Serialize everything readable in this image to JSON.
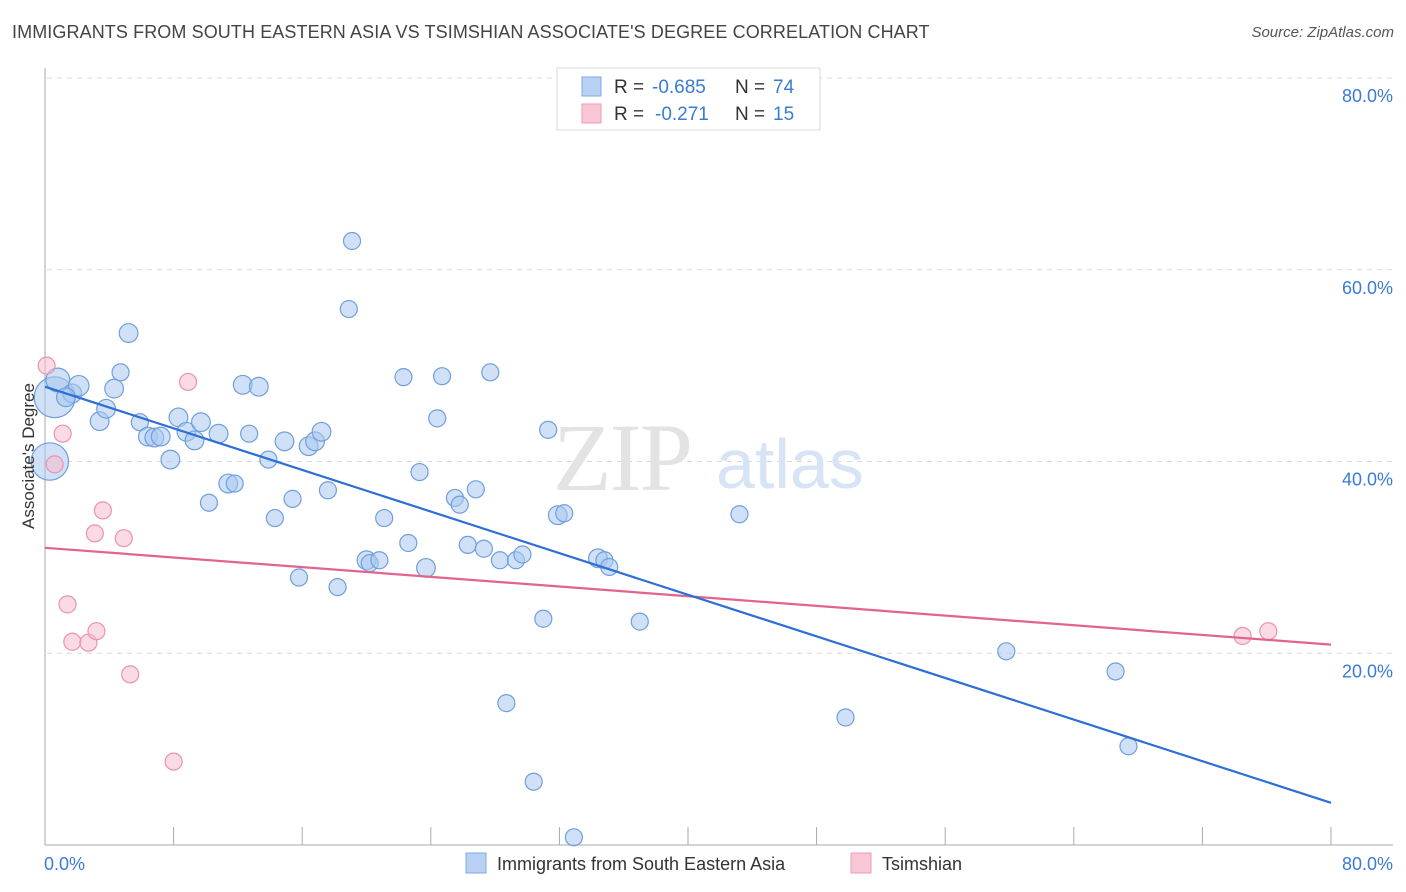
{
  "header": {
    "title": "IMMIGRANTS FROM SOUTH EASTERN ASIA VS TSIMSHIAN ASSOCIATE'S DEGREE CORRELATION CHART",
    "source": "Source: ZipAtlas.com"
  },
  "watermark": {
    "part1": "ZIP",
    "part2": "atlas"
  },
  "stats": {
    "r_label": "R =",
    "n_label": "N =",
    "rows": [
      {
        "r": "-0.685",
        "n": "74",
        "fill": "#b8d1f3",
        "stroke": "#7ea9e0"
      },
      {
        "r": "-0.271",
        "n": "15",
        "fill": "#f9c6d5",
        "stroke": "#ee9ab4"
      }
    ]
  },
  "colors": {
    "blue_point_fill": "#a9c8f0",
    "blue_point_stroke": "#6f9fde",
    "blue_line": "#2d6fd4",
    "pink_point_fill": "#f6bccd",
    "pink_point_stroke": "#eb93ae",
    "pink_line": "#e0648f",
    "tick_text": "#3a7bd5",
    "grid": "#d9d9d9"
  },
  "chart_data": {
    "type": "scatter",
    "title": "IMMIGRANTS FROM SOUTH EASTERN ASIA VS TSIMSHIAN ASSOCIATE'S DEGREE CORRELATION CHART",
    "xlabel": "",
    "ylabel": "Associate's Degree",
    "xlim": [
      0,
      80
    ],
    "ylim": [
      0,
      80
    ],
    "x_tick_labels": [
      "0.0%",
      "80.0%"
    ],
    "y_ticks": [
      20,
      40,
      60,
      80
    ],
    "y_tick_labels": [
      "20.0%",
      "40.0%",
      "60.0%",
      "80.0%"
    ],
    "grid": true,
    "legend_position": "bottom-center",
    "series": [
      {
        "name": "Immigrants from South Eastern Asia",
        "color": "#6f9fde",
        "points": [
          [
            0.6,
            46.7,
            2.4
          ],
          [
            0.8,
            48.5,
            1.4
          ],
          [
            1.7,
            47.1,
            1.1
          ],
          [
            2.1,
            47.9,
            1.2
          ],
          [
            3.4,
            44.2,
            1.1
          ],
          [
            3.8,
            45.5,
            1.1
          ],
          [
            4.3,
            47.6,
            1.1
          ],
          [
            4.7,
            49.3,
            1.0
          ],
          [
            5.2,
            53.4,
            1.1
          ],
          [
            5.9,
            44.1,
            1.0
          ],
          [
            6.4,
            42.6,
            1.1
          ],
          [
            6.8,
            42.5,
            1.1
          ],
          [
            7.2,
            42.6,
            1.1
          ],
          [
            7.8,
            40.2,
            1.1
          ],
          [
            8.3,
            44.6,
            1.1
          ],
          [
            8.8,
            43.1,
            1.1
          ],
          [
            9.3,
            42.2,
            1.1
          ],
          [
            9.7,
            44.1,
            1.1
          ],
          [
            10.2,
            35.7,
            1.0
          ],
          [
            10.8,
            42.9,
            1.1
          ],
          [
            11.4,
            37.7,
            1.1
          ],
          [
            11.8,
            37.7,
            1.0
          ],
          [
            12.3,
            48.0,
            1.1
          ],
          [
            12.7,
            42.9,
            1.0
          ],
          [
            13.3,
            47.8,
            1.1
          ],
          [
            13.9,
            40.2,
            1.0
          ],
          [
            14.3,
            34.1,
            1.0
          ],
          [
            14.9,
            42.1,
            1.1
          ],
          [
            15.4,
            36.1,
            1.0
          ],
          [
            15.8,
            27.9,
            1.0
          ],
          [
            16.4,
            41.6,
            1.1
          ],
          [
            16.8,
            42.1,
            1.1
          ],
          [
            17.2,
            43.1,
            1.1
          ],
          [
            17.6,
            37.0,
            1.0
          ],
          [
            18.2,
            26.9,
            1.0
          ],
          [
            18.9,
            55.9,
            1.0
          ],
          [
            19.1,
            63.0,
            1.0
          ],
          [
            20.0,
            29.7,
            1.1
          ],
          [
            20.2,
            29.4,
            1.0
          ],
          [
            20.8,
            29.7,
            1.0
          ],
          [
            21.1,
            34.1,
            1.0
          ],
          [
            22.3,
            48.8,
            1.0
          ],
          [
            22.6,
            31.5,
            1.0
          ],
          [
            23.3,
            38.9,
            1.0
          ],
          [
            23.7,
            28.9,
            1.1
          ],
          [
            24.4,
            44.5,
            1.0
          ],
          [
            24.7,
            48.9,
            1.0
          ],
          [
            25.5,
            36.2,
            1.0
          ],
          [
            25.8,
            35.5,
            1.0
          ],
          [
            26.3,
            31.3,
            1.0
          ],
          [
            26.8,
            37.1,
            1.0
          ],
          [
            27.3,
            30.9,
            1.0
          ],
          [
            27.7,
            49.3,
            1.0
          ],
          [
            28.3,
            29.7,
            1.0
          ],
          [
            28.7,
            14.8,
            1.0
          ],
          [
            29.3,
            29.7,
            1.0
          ],
          [
            29.7,
            30.3,
            1.0
          ],
          [
            30.4,
            6.6,
            1.0
          ],
          [
            31.0,
            23.6,
            1.0
          ],
          [
            31.3,
            43.3,
            1.0
          ],
          [
            31.9,
            34.4,
            1.1
          ],
          [
            32.3,
            34.6,
            1.0
          ],
          [
            32.9,
            0.8,
            1.0
          ],
          [
            34.4,
            29.9,
            1.1
          ],
          [
            34.8,
            29.7,
            1.0
          ],
          [
            35.1,
            29.0,
            1.0
          ],
          [
            37.0,
            23.3,
            1.0
          ],
          [
            43.2,
            34.5,
            1.0
          ],
          [
            49.8,
            13.3,
            1.0
          ],
          [
            59.8,
            20.2,
            1.0
          ],
          [
            66.6,
            18.1,
            1.0
          ],
          [
            67.4,
            10.3,
            1.0
          ],
          [
            0.3,
            40.0,
            2.2
          ],
          [
            1.3,
            46.7,
            1.1
          ]
        ],
        "trend": {
          "x": [
            0,
            80
          ],
          "y": [
            47.8,
            4.4
          ]
        }
      },
      {
        "name": "Tsimshian",
        "color": "#eb93ae",
        "points": [
          [
            0.1,
            50.0,
            1.0
          ],
          [
            0.6,
            39.7,
            1.0
          ],
          [
            1.1,
            42.9,
            1.0
          ],
          [
            1.4,
            25.1,
            1.0
          ],
          [
            1.7,
            21.2,
            1.0
          ],
          [
            2.7,
            21.1,
            1.0
          ],
          [
            3.1,
            32.5,
            1.0
          ],
          [
            3.2,
            22.3,
            1.0
          ],
          [
            3.6,
            34.9,
            1.0
          ],
          [
            4.9,
            32.0,
            1.0
          ],
          [
            5.3,
            17.8,
            1.0
          ],
          [
            8.0,
            8.7,
            1.0
          ],
          [
            8.9,
            48.3,
            1.0
          ],
          [
            74.5,
            21.8,
            1.0
          ],
          [
            76.1,
            22.3,
            1.0
          ]
        ],
        "trend": {
          "x": [
            0,
            80
          ],
          "y": [
            31.0,
            20.9
          ]
        }
      }
    ]
  },
  "legend": {
    "items": [
      {
        "label": "Immigrants from South Eastern Asia",
        "fill": "#b8d1f3",
        "stroke": "#7ea9e0"
      },
      {
        "label": "Tsimshian",
        "fill": "#f9c6d5",
        "stroke": "#ee9ab4"
      }
    ]
  }
}
